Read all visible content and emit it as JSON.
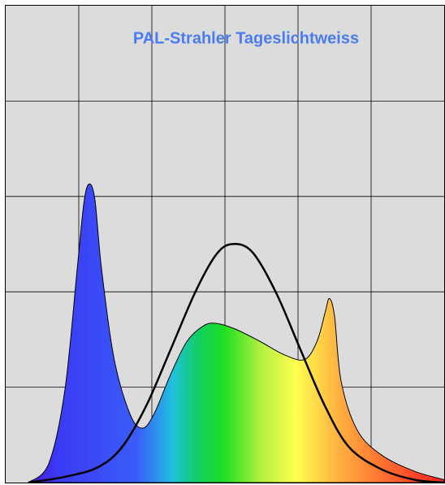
{
  "chart_data": {
    "type": "area",
    "title": "PAL-Strahler Tageslichtweiss",
    "xlim": [
      0,
      6
    ],
    "ylim": [
      0,
      5
    ],
    "xticks": [
      1,
      2,
      3,
      4,
      5
    ],
    "yticks": [
      1,
      2,
      3,
      4
    ],
    "grid": true,
    "series": [
      {
        "kind": "area",
        "x": [
          0.31,
          0.59,
          0.81,
          0.98,
          1.07,
          1.14,
          1.22,
          1.31,
          1.48,
          1.7,
          1.87,
          2.03,
          2.26,
          2.48,
          2.7,
          2.87,
          3.14,
          3.48,
          3.81,
          4.09,
          4.26,
          4.37,
          4.43,
          4.5,
          4.59,
          4.81,
          5.14,
          5.59,
          6.0
        ],
        "values": [
          0,
          0.2,
          0.97,
          2.25,
          2.93,
          3.13,
          2.97,
          2.25,
          1.31,
          0.72,
          0.57,
          0.72,
          1.14,
          1.48,
          1.64,
          1.67,
          1.61,
          1.48,
          1.34,
          1.29,
          1.48,
          1.78,
          1.93,
          1.74,
          1.06,
          0.55,
          0.29,
          0.12,
          0.03
        ]
      },
      {
        "kind": "line",
        "color": "#000000",
        "x": [
          0.31,
          0.81,
          1.26,
          1.59,
          1.92,
          2.26,
          2.59,
          2.87,
          3.09,
          3.37,
          3.7,
          4.03,
          4.37,
          4.7,
          5.14,
          5.59,
          6.0
        ],
        "values": [
          0,
          0.06,
          0.16,
          0.37,
          0.8,
          1.4,
          1.99,
          2.38,
          2.5,
          2.42,
          1.99,
          1.4,
          0.8,
          0.37,
          0.14,
          0.03,
          0
        ]
      }
    ]
  }
}
